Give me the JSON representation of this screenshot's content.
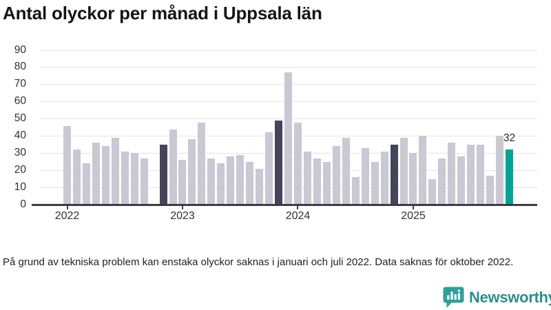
{
  "title": "Antal olyckor per månad i Uppsala län",
  "footnote": "På grund av tekniska problem kan enstaka olyckor saknas i januari och juli 2022. Data saknas för oktober 2022.",
  "logo": {
    "text": "Newsworthy",
    "icon": "newsworthy-chart-bubble-icon"
  },
  "colors": {
    "bar": "#c9c8d3",
    "highlight_dark": "#454459",
    "highlight_current": "#00a398",
    "axis": "#3c3c41",
    "grid": "#e4e4e9",
    "text": "#303030",
    "logo_teal": "#2e8d89",
    "logo_icon": "#2da199"
  },
  "chart_data": {
    "type": "bar",
    "title": "Antal olyckor per månad i Uppsala län",
    "xlabel": "",
    "ylabel": "",
    "ylim": [
      0,
      90
    ],
    "ytick_step": 10,
    "yticks": [
      0,
      10,
      20,
      30,
      40,
      50,
      60,
      70,
      80,
      90
    ],
    "x_tick_labels": [
      "2022",
      "2023",
      "2024",
      "2025"
    ],
    "grid": true,
    "legend": "none",
    "annotation_note": "latest bar labeled with its value",
    "series": [
      {
        "name": "Antal olyckor",
        "points": [
          {
            "m": "2022-01",
            "v": 46,
            "t": "normal"
          },
          {
            "m": "2022-02",
            "v": 32,
            "t": "normal"
          },
          {
            "m": "2022-03",
            "v": 24,
            "t": "normal"
          },
          {
            "m": "2022-04",
            "v": 36,
            "t": "normal"
          },
          {
            "m": "2022-05",
            "v": 34,
            "t": "normal"
          },
          {
            "m": "2022-06",
            "v": 39,
            "t": "normal"
          },
          {
            "m": "2022-07",
            "v": 31,
            "t": "normal"
          },
          {
            "m": "2022-08",
            "v": 30,
            "t": "normal"
          },
          {
            "m": "2022-09",
            "v": 27,
            "t": "normal"
          },
          {
            "m": "2022-10",
            "v": null,
            "t": "missing"
          },
          {
            "m": "2022-11",
            "v": 35,
            "t": "dark"
          },
          {
            "m": "2022-12",
            "v": 44,
            "t": "normal"
          },
          {
            "m": "2023-01",
            "v": 26,
            "t": "normal"
          },
          {
            "m": "2023-02",
            "v": 38,
            "t": "normal"
          },
          {
            "m": "2023-03",
            "v": 48,
            "t": "normal"
          },
          {
            "m": "2023-04",
            "v": 27,
            "t": "normal"
          },
          {
            "m": "2023-05",
            "v": 24,
            "t": "normal"
          },
          {
            "m": "2023-06",
            "v": 28,
            "t": "normal"
          },
          {
            "m": "2023-07",
            "v": 29,
            "t": "normal"
          },
          {
            "m": "2023-08",
            "v": 25,
            "t": "normal"
          },
          {
            "m": "2023-09",
            "v": 21,
            "t": "normal"
          },
          {
            "m": "2023-10",
            "v": 42,
            "t": "normal"
          },
          {
            "m": "2023-11",
            "v": 49,
            "t": "dark"
          },
          {
            "m": "2023-12",
            "v": 77,
            "t": "normal"
          },
          {
            "m": "2024-01",
            "v": 48,
            "t": "normal"
          },
          {
            "m": "2024-02",
            "v": 31,
            "t": "normal"
          },
          {
            "m": "2024-03",
            "v": 27,
            "t": "normal"
          },
          {
            "m": "2024-04",
            "v": 25,
            "t": "normal"
          },
          {
            "m": "2024-05",
            "v": 34,
            "t": "normal"
          },
          {
            "m": "2024-06",
            "v": 39,
            "t": "normal"
          },
          {
            "m": "2024-07",
            "v": 16,
            "t": "normal"
          },
          {
            "m": "2024-08",
            "v": 33,
            "t": "normal"
          },
          {
            "m": "2024-09",
            "v": 25,
            "t": "normal"
          },
          {
            "m": "2024-10",
            "v": 31,
            "t": "normal"
          },
          {
            "m": "2024-11",
            "v": 35,
            "t": "dark"
          },
          {
            "m": "2024-12",
            "v": 39,
            "t": "normal"
          },
          {
            "m": "2025-01",
            "v": 30,
            "t": "normal"
          },
          {
            "m": "2025-02",
            "v": 40,
            "t": "normal"
          },
          {
            "m": "2025-03",
            "v": 15,
            "t": "normal"
          },
          {
            "m": "2025-04",
            "v": 27,
            "t": "normal"
          },
          {
            "m": "2025-05",
            "v": 36,
            "t": "normal"
          },
          {
            "m": "2025-06",
            "v": 28,
            "t": "normal"
          },
          {
            "m": "2025-07",
            "v": 35,
            "t": "normal"
          },
          {
            "m": "2025-08",
            "v": 35,
            "t": "normal"
          },
          {
            "m": "2025-09",
            "v": 17,
            "t": "normal"
          },
          {
            "m": "2025-10",
            "v": 40,
            "t": "normal"
          },
          {
            "m": "2025-11",
            "v": 32,
            "t": "current",
            "label": "32"
          }
        ]
      }
    ]
  }
}
